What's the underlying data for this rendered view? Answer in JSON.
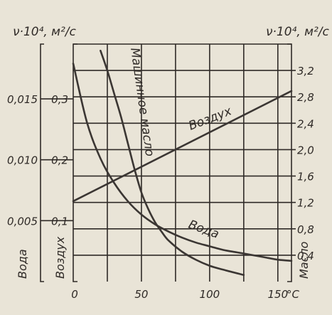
{
  "chart_data": {
    "type": "line",
    "left_axis_label": "ν·10⁴, м²/с",
    "right_axis_label": "ν·10⁴, м²/с",
    "x_unit": "°C",
    "x_ticks": [
      "0",
      "50",
      "100",
      "150"
    ],
    "xlim": [
      0,
      160
    ],
    "left_outer_ticks": [
      "0,015",
      "0,010",
      "0,005"
    ],
    "left_inner_ticks": [
      "0,3",
      "0,2",
      "0,1"
    ],
    "right_ticks": [
      "3,2",
      "2,8",
      "2,4",
      "2,0",
      "1,6",
      "1,2",
      "0,8",
      "0,4"
    ],
    "axis_names": {
      "left_outer": "Вода",
      "left_inner": "Воздух",
      "right": "Масло"
    },
    "ylim": {
      "left_outer": [
        0,
        0.0195
      ],
      "left_inner": [
        0,
        0.39
      ],
      "right": [
        0,
        3.6
      ]
    },
    "series": [
      {
        "name": "Вода",
        "axis": "left_outer",
        "x": [
          0,
          10,
          20,
          30,
          40,
          50,
          60,
          70,
          80,
          90,
          100,
          110,
          120,
          130,
          140,
          150,
          160
        ],
        "y": [
          0.0179,
          0.0131,
          0.0101,
          0.0081,
          0.0066,
          0.0055,
          0.0047,
          0.0041,
          0.0036,
          0.0032,
          0.0029,
          0.0026,
          0.0024,
          0.0022,
          0.002,
          0.0018,
          0.0017
        ]
      },
      {
        "name": "Воздух",
        "axis": "left_inner",
        "x": [
          0,
          160
        ],
        "y": [
          0.132,
          0.313
        ]
      },
      {
        "name": "Машинное масло",
        "axis": "right",
        "x": [
          20,
          25,
          30,
          35,
          40,
          45,
          50,
          55,
          60,
          65,
          70,
          80,
          90,
          100,
          110,
          125
        ],
        "y": [
          3.5,
          3.2,
          2.85,
          2.5,
          2.1,
          1.7,
          1.35,
          1.1,
          0.9,
          0.75,
          0.62,
          0.45,
          0.33,
          0.24,
          0.18,
          0.1
        ]
      }
    ],
    "grid": true
  }
}
